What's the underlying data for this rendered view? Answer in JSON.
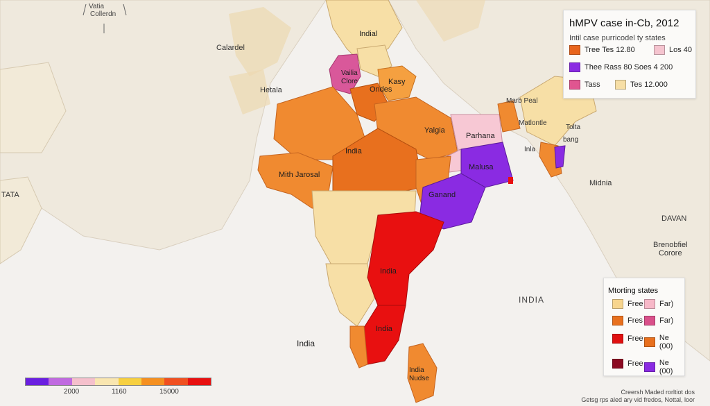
{
  "legend_top": {
    "title": "hMPV case in-Cb, 2012",
    "subtitle": "Intil case purricodel ty states",
    "rows": [
      {
        "left_label": "Tree Tes 12.80",
        "left_color": "#e8641c",
        "right_label": "Los 40",
        "right_color": "#f5c4cf"
      },
      {
        "left_label": "Thee Rass 80 Soes 4 200",
        "left_color": "#8a2be2",
        "right_label": "",
        "right_color": ""
      },
      {
        "left_label": "Tass",
        "left_color": "#e05590",
        "right_label": "Tes 12.000",
        "right_color": "#f7dfa6"
      }
    ]
  },
  "legend_bottom": {
    "title": "Mtorting states",
    "items": [
      {
        "label": "Free",
        "color": "#f7d58e"
      },
      {
        "label": "Far)",
        "color": "#f7b8c8"
      },
      {
        "label": "Fres",
        "color": "#e8701e"
      },
      {
        "label": "Far)",
        "color": "#d9508a"
      },
      {
        "label": "Free",
        "color": "#e01010"
      },
      {
        "label": "Ne (00)",
        "color": "#e8701e"
      },
      {
        "label": "Free",
        "color": "#8b0a22"
      },
      {
        "label": "Ne (00)",
        "color": "#8a2be2"
      }
    ]
  },
  "scale": {
    "colors": [
      "#6a1fe0",
      "#c06ae0",
      "#f5c0cc",
      "#f9e6b0",
      "#f7d040",
      "#f59020",
      "#f05020",
      "#e81010"
    ],
    "labels": [
      "2000",
      "1160",
      "15000"
    ]
  },
  "compass": {
    "line1": "Vatia",
    "line2": "Collerdn"
  },
  "map_labels": [
    {
      "id": "indial-top",
      "text": "Indial"
    },
    {
      "id": "calardel",
      "text": "Calardel"
    },
    {
      "id": "hetala",
      "text": "Hetala"
    },
    {
      "id": "vailia-clore",
      "text": "Vailia\nClore"
    },
    {
      "id": "kasy",
      "text": "Kasy"
    },
    {
      "id": "ondes",
      "text": "Ondes"
    },
    {
      "id": "yalgia",
      "text": "Yalgia"
    },
    {
      "id": "parhana",
      "text": "Parhana"
    },
    {
      "id": "india-center",
      "text": "India"
    },
    {
      "id": "mith-jarosal",
      "text": "Mith Jarosal"
    },
    {
      "id": "malusa",
      "text": "Malusa"
    },
    {
      "id": "ganand",
      "text": "Ganand"
    },
    {
      "id": "india-red1",
      "text": "India"
    },
    {
      "id": "india-red2",
      "text": "India"
    },
    {
      "id": "india-south",
      "text": "India"
    },
    {
      "id": "india-lanka",
      "text": "India\nNudse"
    },
    {
      "id": "marb-peal",
      "text": "Marb Peal"
    },
    {
      "id": "matlontle",
      "text": "Matlontle"
    },
    {
      "id": "tolta",
      "text": "Tolta"
    },
    {
      "id": "bang",
      "text": "bang"
    },
    {
      "id": "inla",
      "text": "Inla"
    },
    {
      "id": "midnia",
      "text": "Midnia"
    },
    {
      "id": "davan",
      "text": "DAVAN"
    },
    {
      "id": "brenobfiel",
      "text": "Brenobfiel\nCorore"
    },
    {
      "id": "india-sea",
      "text": "INDIA"
    },
    {
      "id": "tata",
      "text": "TATA"
    }
  ],
  "credits": {
    "line1": "Creersh Maded rorltiot dos",
    "line2": "Getsg rps aled ary vid fredos, Nottal, loor"
  }
}
